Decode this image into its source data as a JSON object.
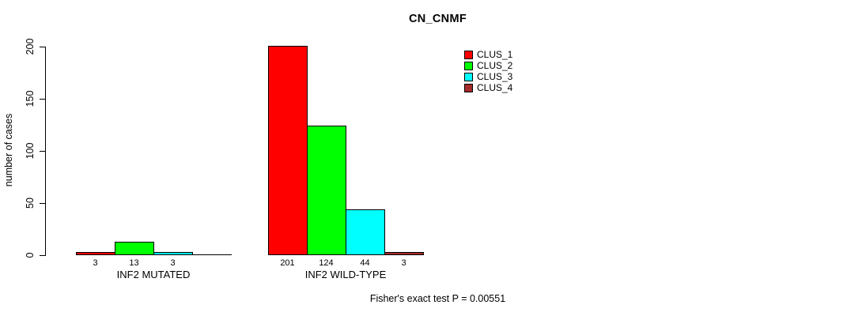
{
  "title": "CN_CNMF",
  "footer": "Fisher's exact test P = 0.00551",
  "chart_data": {
    "type": "bar",
    "title": "CN_CNMF",
    "xlabel": "",
    "ylabel": "number of cases",
    "categories": [
      "INF2 MUTATED",
      "INF2 WILD-TYPE"
    ],
    "series": [
      {
        "name": "CLUS_1",
        "color": "#ff0000",
        "values": [
          3,
          201
        ]
      },
      {
        "name": "CLUS_2",
        "color": "#00ff00",
        "values": [
          13,
          124
        ]
      },
      {
        "name": "CLUS_3",
        "color": "#00ffff",
        "values": [
          3,
          44
        ]
      },
      {
        "name": "CLUS_4",
        "color": "#a52a2a",
        "values": [
          0,
          3
        ]
      }
    ],
    "bar_labels": [
      [
        "3",
        "13",
        "3",
        ""
      ],
      [
        "201",
        "124",
        "44",
        "3"
      ]
    ],
    "yticks": [
      0,
      50,
      100,
      150,
      200
    ],
    "ylim": [
      0,
      200
    ],
    "grid": false,
    "legend_position": "top-right",
    "annotation": "Fisher's exact test P = 0.00551"
  }
}
